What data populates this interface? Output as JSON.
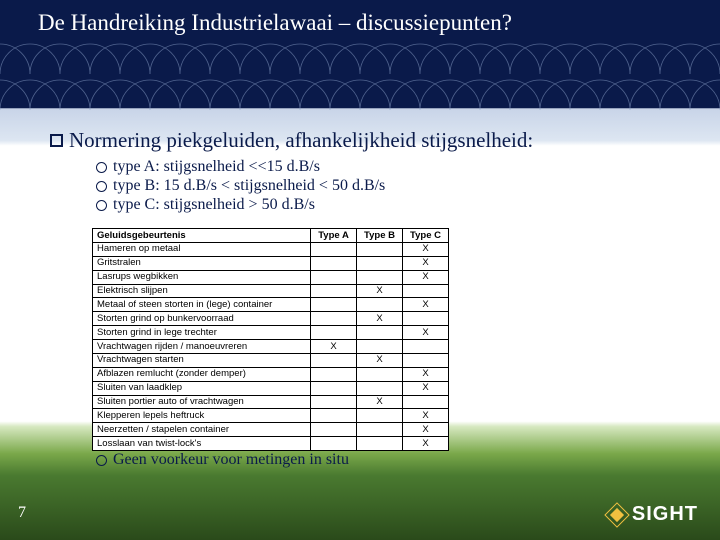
{
  "title": "De Handreiking Industrielawaai – discussiepunten?",
  "main_bullet": "Normering piekgeluiden, afhankelijkheid stijgsnelheid:",
  "sub_bullets": [
    "type A: stijgsnelheid <<15 d.B/s",
    "type B: 15 d.B/s < stijgsnelheid < 50 d.B/s",
    "type C: stijgsnelheid > 50 d.B/s"
  ],
  "table": {
    "headers": [
      "Geluidsgebeurtenis",
      "Type A",
      "Type B",
      "Type C"
    ],
    "rows": [
      [
        "Hameren op metaal",
        "",
        "",
        "X"
      ],
      [
        "Gritstralen",
        "",
        "",
        "X"
      ],
      [
        "Lasrups wegbikken",
        "",
        "",
        "X"
      ],
      [
        "Elektrisch slijpen",
        "",
        "X",
        ""
      ],
      [
        "Metaal of steen storten in (lege) container",
        "",
        "",
        "X"
      ],
      [
        "Storten grind op bunkervoorraad",
        "",
        "X",
        ""
      ],
      [
        "Storten grind in lege trechter",
        "",
        "",
        "X"
      ],
      [
        "Vrachtwagen rijden / manoeuvreren",
        "X",
        "",
        ""
      ],
      [
        "Vrachtwagen starten",
        "",
        "X",
        ""
      ],
      [
        "Afblazen remlucht (zonder demper)",
        "",
        "",
        "X"
      ],
      [
        "Sluiten van laadklep",
        "",
        "",
        "X"
      ],
      [
        "Sluiten portier auto of vrachtwagen",
        "",
        "X",
        ""
      ],
      [
        "Klepperen lepels heftruck",
        "",
        "",
        "X"
      ],
      [
        "Neerzetten / stapelen container",
        "",
        "",
        "X"
      ],
      [
        "Losslaan van twist-lock's",
        "",
        "",
        "X"
      ]
    ]
  },
  "footer_bullet": "Geen voorkeur voor metingen in situ",
  "page_number": "7",
  "logo_text": "SIGHT"
}
